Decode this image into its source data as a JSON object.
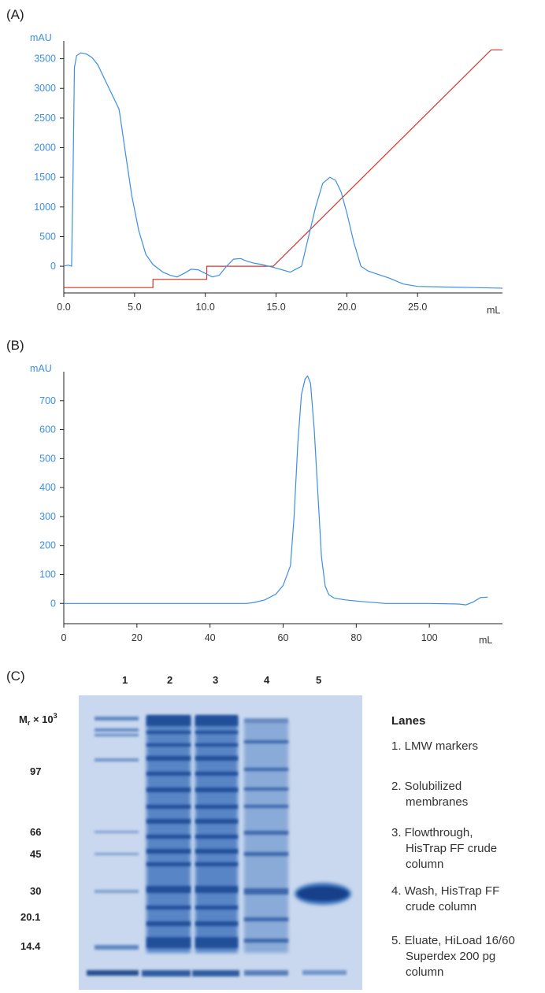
{
  "panels": {
    "a_label": "(A)",
    "b_label": "(B)",
    "c_label": "(C)"
  },
  "colors": {
    "uv_trace": "#3b8ee6",
    "gradient_trace": "#d9342b",
    "axis": "#222222",
    "gel_background": "#c9d8ee",
    "band": "#2f62a8"
  },
  "chart_data": [
    {
      "type": "line",
      "panel": "A",
      "ylabel": "mAU",
      "xlabel": "mL",
      "xlim": [
        0,
        31
      ],
      "ylim": [
        -450,
        3800
      ],
      "x_ticks": [
        "0.0",
        "5.0",
        "10.0",
        "15.0",
        "20.0",
        "25.0"
      ],
      "y_ticks": [
        "0",
        "500",
        "1000",
        "1500",
        "2000",
        "2500",
        "3000",
        "3500"
      ],
      "series": [
        {
          "x": [
            0,
            0.3,
            0.55,
            0.65,
            0.75,
            0.9,
            1.2,
            1.6,
            2.0,
            2.4,
            2.8,
            3.2,
            3.6,
            3.9,
            4.0,
            4.3,
            4.8,
            5.3,
            5.8,
            6.3,
            7.0,
            7.5,
            8.0,
            8.5,
            9.0,
            9.5,
            10.0,
            10.5,
            11.0,
            11.5,
            12.0,
            12.5,
            13.0,
            13.5,
            14.0,
            15.0,
            16.0,
            16.8,
            17.3,
            17.8,
            18.3,
            18.8,
            19.2,
            19.6,
            20.0,
            20.5,
            21.0,
            21.5,
            22.0,
            23.0,
            24.0,
            25.0,
            27.0,
            29.0,
            31.0
          ],
          "y": [
            0,
            20,
            0,
            1500,
            3350,
            3550,
            3600,
            3580,
            3520,
            3400,
            3200,
            3000,
            2800,
            2650,
            2500,
            2000,
            1200,
            600,
            200,
            30,
            -100,
            -150,
            -180,
            -120,
            -50,
            -60,
            -120,
            -180,
            -150,
            0,
            120,
            130,
            80,
            50,
            30,
            -30,
            -100,
            0,
            500,
            1000,
            1400,
            1500,
            1450,
            1250,
            900,
            400,
            0,
            -80,
            -120,
            -200,
            -300,
            -340,
            -350,
            -360,
            -370
          ]
        },
        {
          "x": [
            0,
            6.3,
            6.3,
            10.1,
            10.1,
            14.8,
            30.2,
            31.0
          ],
          "y": [
            -360,
            -360,
            -220,
            -220,
            0,
            0,
            3650,
            3650
          ]
        }
      ]
    },
    {
      "type": "line",
      "panel": "B",
      "ylabel": "mAU",
      "xlabel": "mL",
      "xlim": [
        0,
        120
      ],
      "ylim": [
        -70,
        800
      ],
      "x_ticks": [
        "0",
        "20",
        "40",
        "60",
        "80",
        "100"
      ],
      "y_ticks": [
        "0",
        "100",
        "200",
        "300",
        "400",
        "500",
        "600",
        "700"
      ],
      "series": [
        {
          "x": [
            0,
            50,
            52,
            55,
            58,
            60,
            62,
            63,
            64,
            65,
            66,
            66.7,
            67.5,
            68.5,
            69.5,
            70.5,
            71.5,
            72.5,
            74,
            77,
            81,
            88,
            100,
            108,
            110,
            112,
            114,
            116
          ],
          "y": [
            0,
            0,
            3,
            12,
            32,
            62,
            130,
            300,
            550,
            720,
            775,
            785,
            760,
            600,
            380,
            160,
            60,
            30,
            18,
            12,
            7,
            0,
            0,
            -2,
            -5,
            5,
            20,
            22
          ]
        }
      ]
    }
  ],
  "gel": {
    "mr_label_main": "M",
    "mr_label_sub": "r",
    "mr_label_suffix": " × 10",
    "mr_label_sup": "3",
    "lane_numbers": [
      "1",
      "2",
      "3",
      "4",
      "5"
    ],
    "markers": [
      "97",
      "66",
      "45",
      "30",
      "20.1",
      "14.4"
    ]
  },
  "legend": {
    "title": "Lanes",
    "items": [
      [
        "1. LMW markers"
      ],
      [
        "2. Solubilized",
        "membranes"
      ],
      [
        "3. Flowthrough,",
        "HisTrap FF crude",
        "column"
      ],
      [
        "4. Wash, HisTrap FF",
        "crude column"
      ],
      [
        "5. Eluate, HiLoad 16/60",
        "Superdex 200 pg",
        "column"
      ]
    ]
  }
}
